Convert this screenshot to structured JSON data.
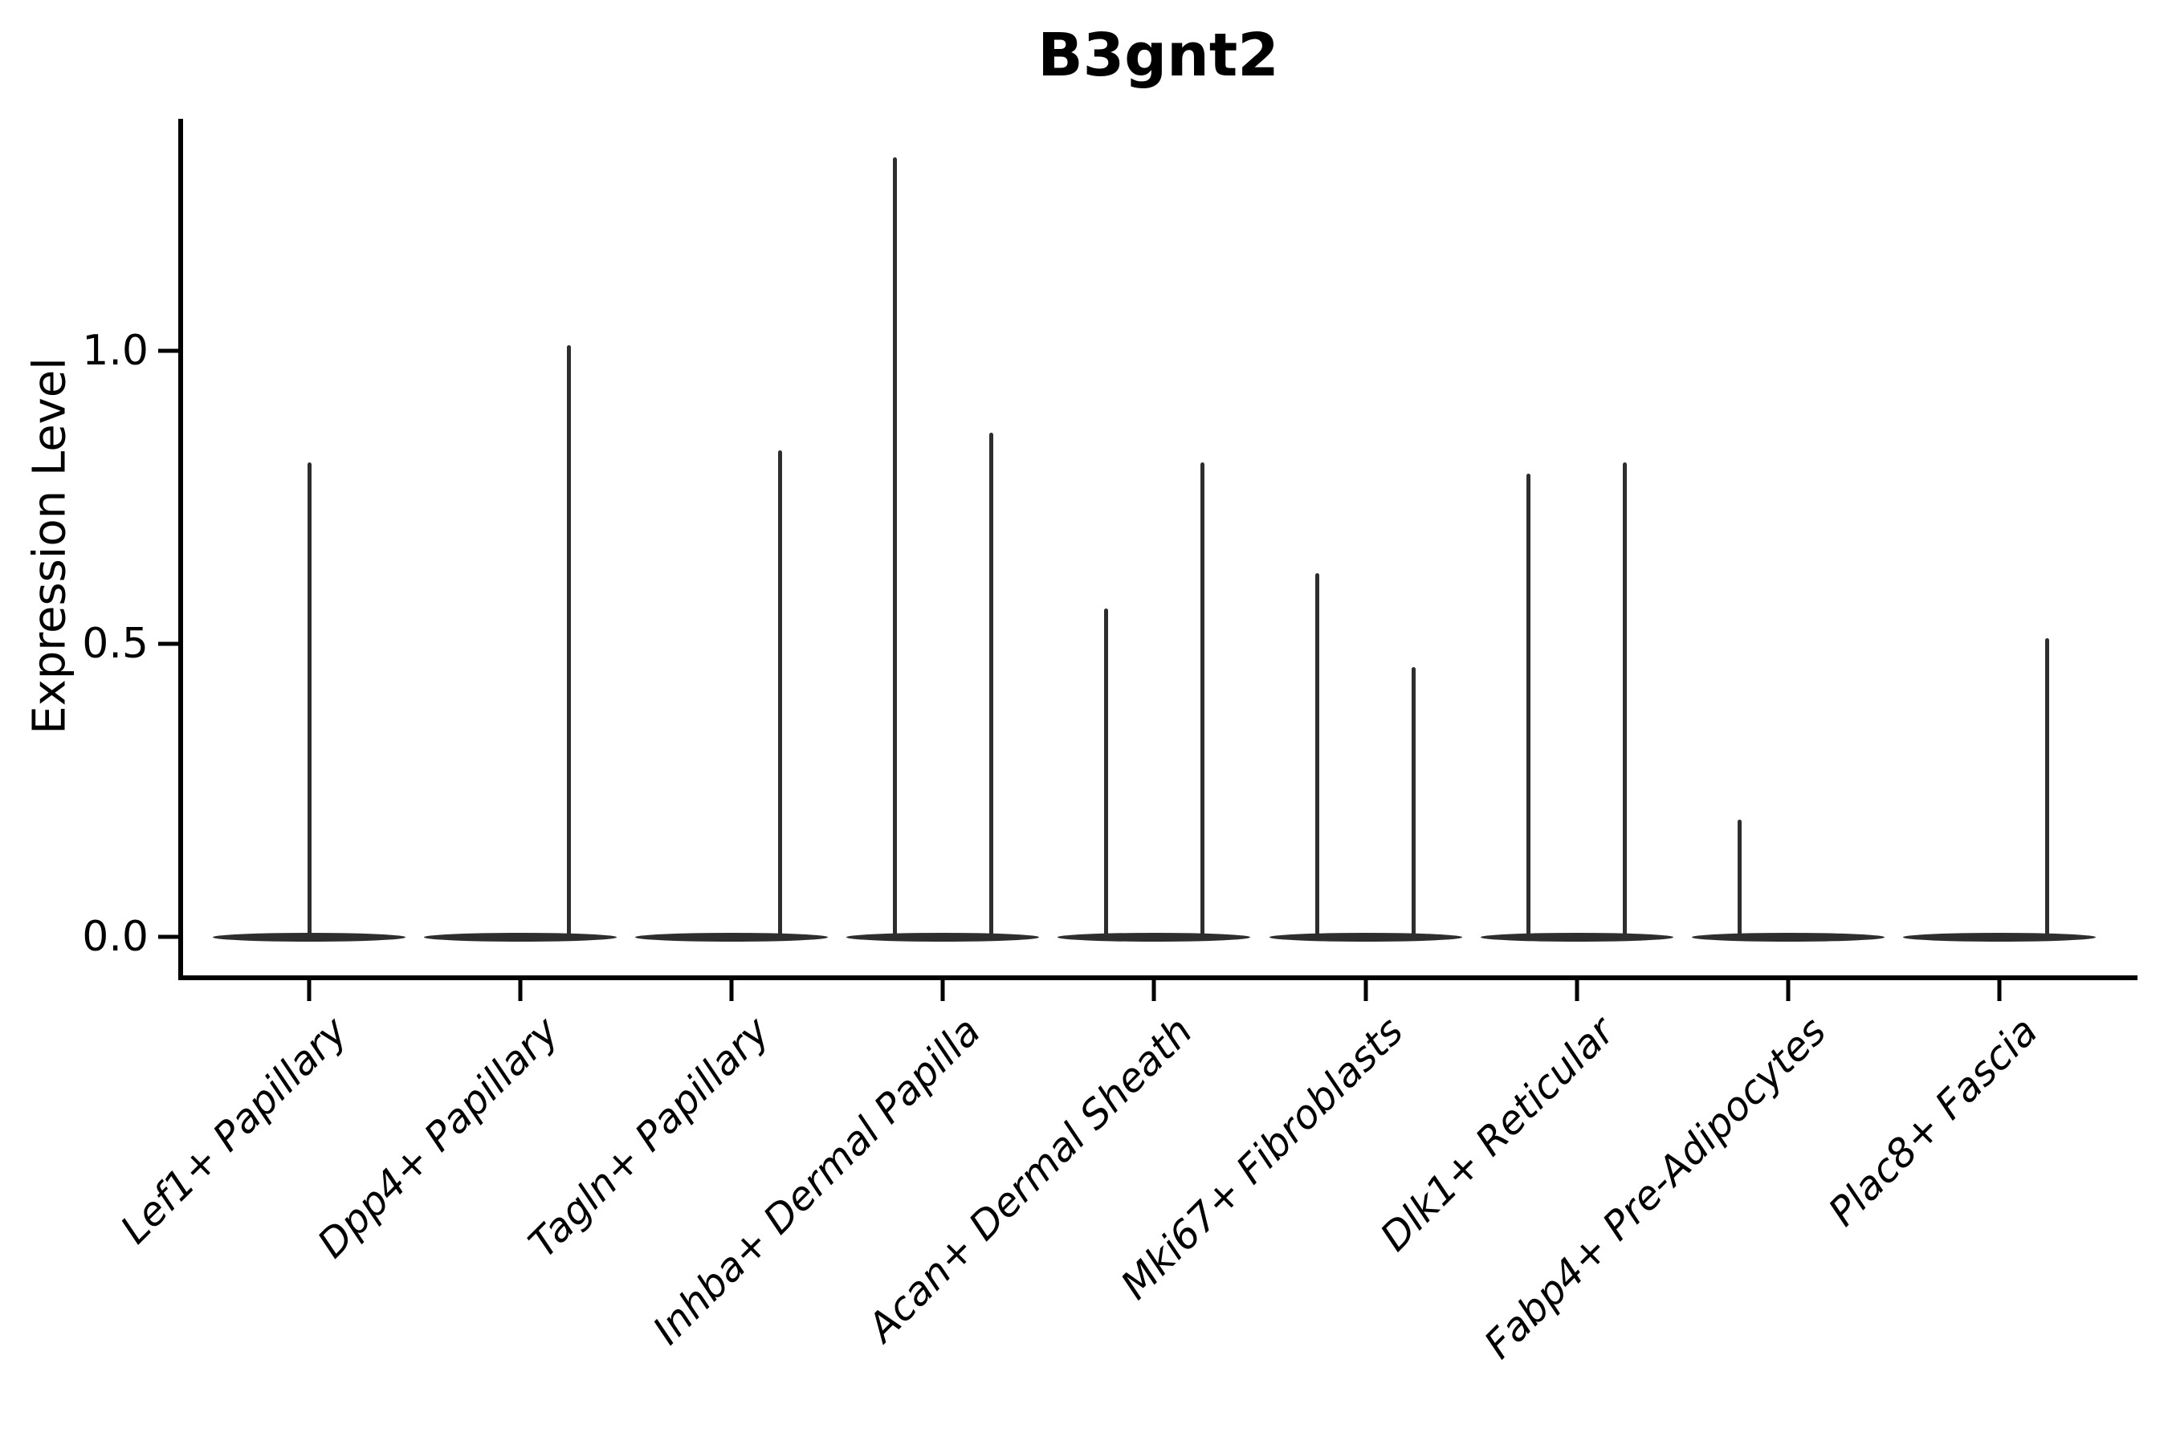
{
  "chart_data": {
    "type": "violin",
    "title": "B3gnt2",
    "ylabel": "Expression Level",
    "xlabel": "",
    "yticks": [
      0.0,
      0.5,
      1.0
    ],
    "ylim": [
      -0.07,
      1.4
    ],
    "grid": false,
    "legend": "none",
    "style": "flat zero-inflated violins on baseline with thin density spikes at group maxima",
    "colors": {
      "violin": "#2e2e2e",
      "axis": "#000000",
      "text": "#000000",
      "background": "#ffffff"
    },
    "categories": [
      {
        "label": "Lef1+ Papillary",
        "spikes": [
          {
            "slot": "center",
            "max": 0.81
          }
        ]
      },
      {
        "label": "Dpp4+ Papillary",
        "spikes": [
          {
            "slot": "right",
            "max": 1.01
          }
        ]
      },
      {
        "label": "Tagln+ Papillary",
        "spikes": [
          {
            "slot": "right",
            "max": 0.83
          }
        ]
      },
      {
        "label": "Inhba+ Dermal Papilla",
        "spikes": [
          {
            "slot": "left",
            "max": 1.33
          },
          {
            "slot": "right",
            "max": 0.86
          }
        ]
      },
      {
        "label": "Acan+ Dermal Sheath",
        "spikes": [
          {
            "slot": "left",
            "max": 0.56
          },
          {
            "slot": "right",
            "max": 0.81
          }
        ]
      },
      {
        "label": "Mki67+ Fibroblasts",
        "spikes": [
          {
            "slot": "left",
            "max": 0.62
          },
          {
            "slot": "right",
            "max": 0.46
          }
        ]
      },
      {
        "label": "Dlk1+ Reticular",
        "spikes": [
          {
            "slot": "left",
            "max": 0.79
          },
          {
            "slot": "right",
            "max": 0.81
          }
        ]
      },
      {
        "label": "Fabp4+ Pre-Adipocytes",
        "spikes": [
          {
            "slot": "left",
            "max": 0.2
          }
        ]
      },
      {
        "label": "Plac8+ Fascia",
        "spikes": [
          {
            "slot": "right",
            "max": 0.51
          }
        ]
      }
    ]
  }
}
